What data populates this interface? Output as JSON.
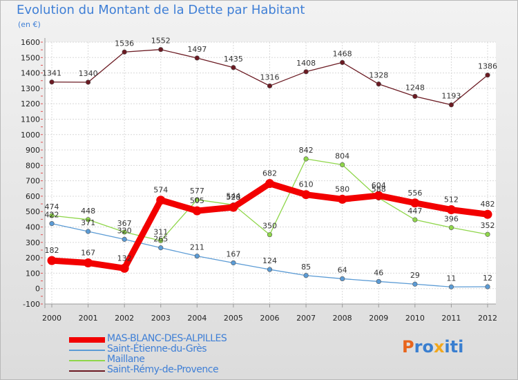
{
  "header": {
    "title": "Evolution du Montant de la Dette par Habitant",
    "subtitle": "(en €)"
  },
  "logo": {
    "text": "Proxiti",
    "colors": [
      "#e8651c",
      "#3a7fd0",
      "#3a7fd0",
      "#f2a81d",
      "#3a7fd0",
      "#3a7fd0",
      "#3a7fd0"
    ]
  },
  "chart_data": {
    "type": "line",
    "x": [
      2000,
      2001,
      2002,
      2003,
      2004,
      2005,
      2006,
      2007,
      2008,
      2009,
      2010,
      2011,
      2012
    ],
    "ylim": [
      -100,
      1600
    ],
    "yticks": [
      -100,
      0,
      100,
      200,
      300,
      400,
      500,
      600,
      700,
      800,
      900,
      1000,
      1100,
      1200,
      1300,
      1400,
      1500,
      1600
    ],
    "grid": true,
    "legend_position": "bottom-left",
    "series": [
      {
        "name": "Saint-Rémy-de-Provence",
        "color": "#6b1a22",
        "values": [
          1341,
          1340,
          1536,
          1552,
          1497,
          1435,
          1316,
          1408,
          1468,
          1328,
          1248,
          1193,
          1386
        ]
      },
      {
        "name": "Maillane",
        "color": "#8fd64a",
        "values": [
          474,
          448,
          367,
          311,
          577,
          544,
          350,
          842,
          804,
          588,
          447,
          396,
          352
        ]
      },
      {
        "name": "Saint-Étienne-du-Grès",
        "color": "#5b9bd5",
        "values": [
          422,
          371,
          320,
          265,
          211,
          167,
          124,
          85,
          64,
          46,
          29,
          11,
          12
        ]
      },
      {
        "name": "MAS-BLANC-DES-ALPILLES",
        "color": "#f20000",
        "values": [
          182,
          167,
          132,
          574,
          505,
          528,
          682,
          610,
          580,
          604,
          556,
          512,
          482
        ]
      }
    ]
  }
}
